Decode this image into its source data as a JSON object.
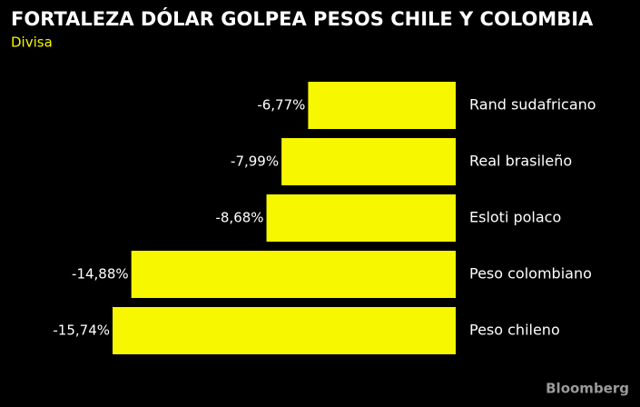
{
  "chart_data": {
    "type": "bar",
    "orientation": "horizontal",
    "title": "FORTALEZA DÓLAR GOLPEA PESOS CHILE Y COLOMBIA",
    "subtitle": "Divisa",
    "source": "Bloomberg",
    "categories": [
      "Rand sudafricano",
      "Real brasileño",
      "Esloti polaco",
      "Peso colombiano",
      "Peso chileno"
    ],
    "values": [
      -6.77,
      -7.99,
      -8.68,
      -14.88,
      -15.74
    ],
    "value_labels": [
      "-6,77%",
      "-7,99%",
      "-8,68%",
      "-14,88%",
      "-15,74%"
    ],
    "color": "#f7f700"
  }
}
